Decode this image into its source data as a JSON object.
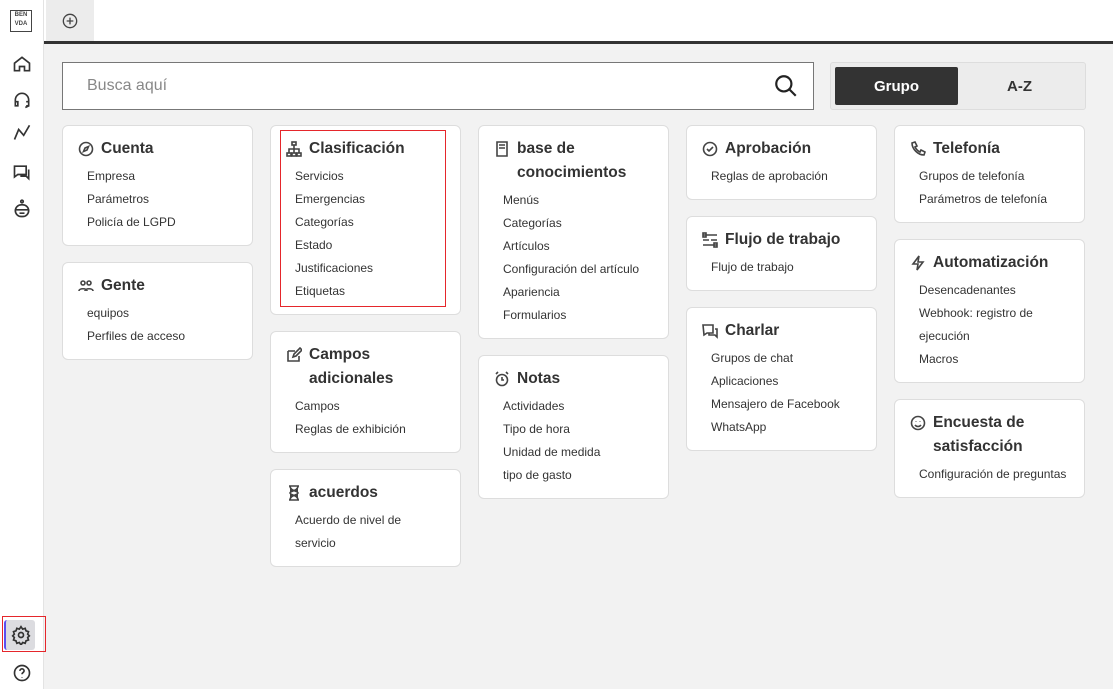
{
  "sidebar": {
    "logo": "BEN VDA",
    "items": [
      "home",
      "support",
      "analytics",
      "chat",
      "bot"
    ],
    "bottom": [
      "settings",
      "help"
    ]
  },
  "topbar": {
    "tab_icon": "plus-circle-icon"
  },
  "search": {
    "placeholder": "Busca aquí"
  },
  "toggle": {
    "group": "Grupo",
    "az": "A-Z",
    "active": "Grupo"
  },
  "accent": "#5a4ff0",
  "highlight": "#e5262b",
  "columns": [
    [
      {
        "title": "Cuenta",
        "icon": "compass",
        "items": [
          "Empresa",
          "Parámetros",
          "Policía de LGPD"
        ]
      },
      {
        "title": "Gente",
        "icon": "people",
        "items": [
          "equipos",
          "Perfiles de acceso"
        ]
      }
    ],
    [
      {
        "title": "Clasificación",
        "icon": "hierarchy",
        "items": [
          "Servicios",
          "Emergencias",
          "Categorías",
          "Estado",
          "Justificaciones",
          "Etiquetas"
        ],
        "highlighted": true
      },
      {
        "title": "Campos adicionales",
        "icon": "edit",
        "items": [
          "Campos",
          "Reglas de exhibición"
        ]
      },
      {
        "title": "acuerdos",
        "icon": "hourglass",
        "items": [
          "Acuerdo de nivel de servicio"
        ]
      }
    ],
    [
      {
        "title": "base de conocimientos",
        "icon": "book",
        "items": [
          "Menús",
          "Categorías",
          "Artículos",
          "Configuración del artículo",
          "Apariencia",
          "Formularios"
        ]
      },
      {
        "title": "Notas",
        "icon": "alarm",
        "items": [
          "Actividades",
          "Tipo de hora",
          "Unidad de medida",
          "tipo de gasto"
        ]
      }
    ],
    [
      {
        "title": "Aprobación",
        "icon": "check-circle",
        "items": [
          "Reglas de aprobación"
        ]
      },
      {
        "title": "Flujo de trabajo",
        "icon": "workflow",
        "items": [
          "Flujo de trabajo"
        ]
      },
      {
        "title": "Charlar",
        "icon": "chat",
        "items": [
          "Grupos de chat",
          "Aplicaciones",
          "Mensajero de Facebook",
          "WhatsApp"
        ]
      }
    ],
    [
      {
        "title": "Telefonía",
        "icon": "phone",
        "items": [
          "Grupos de telefonía",
          "Parámetros de telefonía"
        ]
      },
      {
        "title": "Automatización",
        "icon": "bolt",
        "items": [
          "Desencadenantes",
          "Webhook: registro de ejecución",
          "Macros"
        ]
      },
      {
        "title": "Encuesta de satisfacción",
        "icon": "smile",
        "items": [
          "Configuración de preguntas"
        ]
      }
    ]
  ]
}
